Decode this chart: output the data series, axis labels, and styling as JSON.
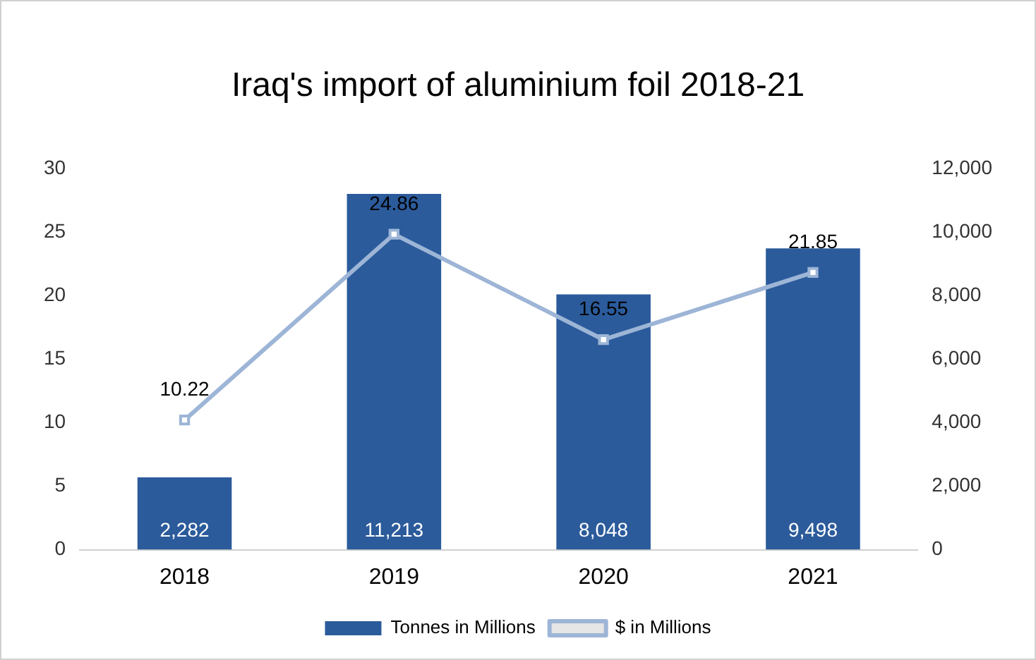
{
  "chart_data": {
    "type": "bar",
    "title": "Iraq's import of aluminium foil 2018-21",
    "categories": [
      "2018",
      "2019",
      "2020",
      "2021"
    ],
    "series": [
      {
        "name": "Tonnes in Millions",
        "axis": "y2",
        "color": "#2b5b9b",
        "values": [
          2282,
          11213,
          8048,
          9498
        ],
        "value_labels": [
          "2,282",
          "11,213",
          "8,048",
          "9,498"
        ]
      },
      {
        "name": "$ in Millions",
        "type": "line",
        "axis": "y",
        "color": "#9db5d6",
        "values": [
          10.22,
          24.86,
          16.55,
          21.85
        ],
        "value_labels": [
          "10.22",
          "24.86",
          "16.55",
          "21.85"
        ]
      }
    ],
    "ylim": [
      0,
      30
    ],
    "yticks": [
      0,
      5,
      10,
      15,
      20,
      25,
      30
    ],
    "y2lim": [
      0,
      12000
    ],
    "y2ticks": [
      0,
      {
        "value": 2000,
        "label": "2,000"
      },
      {
        "value": 4000,
        "label": "4,000"
      },
      {
        "value": 6000,
        "label": "6,000"
      },
      {
        "value": 8000,
        "label": "8,000"
      },
      {
        "value": 10000,
        "label": "10,000"
      },
      {
        "value": 12000,
        "label": "12,000"
      }
    ],
    "grid": false,
    "legend": "bottom",
    "marker": "square",
    "line_style": "solid"
  }
}
